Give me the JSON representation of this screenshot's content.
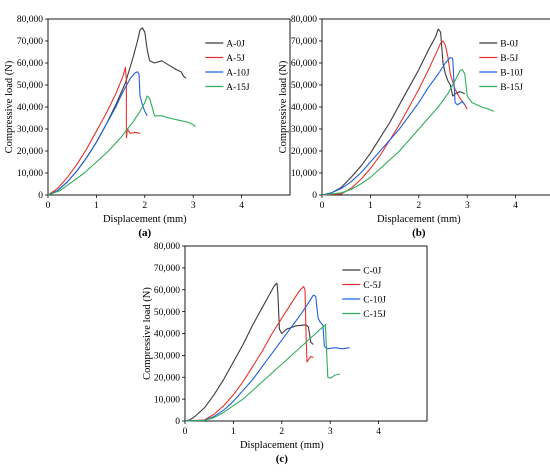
{
  "chart_data": [
    {
      "type": "line",
      "panel_label": "(a)",
      "xlabel": "Displacement (mm)",
      "ylabel": "Compressive load (N)",
      "xlim": [
        0,
        5
      ],
      "ylim": [
        0,
        80000
      ],
      "x_ticks": [
        "0",
        "1",
        "2",
        "3",
        "4"
      ],
      "y_ticks": [
        "0",
        "10,000",
        "20,000",
        "30,000",
        "40,000",
        "50,000",
        "60,000",
        "70,000",
        "80,000"
      ],
      "grid": false,
      "legend": "top-right",
      "series": [
        {
          "name": "A-0J",
          "color": "#3c3c3c",
          "points": [
            [
              0.0,
              0
            ],
            [
              0.2,
              2000
            ],
            [
              0.4,
              6000
            ],
            [
              0.6,
              11000
            ],
            [
              0.8,
              17000
            ],
            [
              1.0,
              24000
            ],
            [
              1.2,
              32000
            ],
            [
              1.4,
              41000
            ],
            [
              1.6,
              51000
            ],
            [
              1.75,
              62000
            ],
            [
              1.85,
              70000
            ],
            [
              1.9,
              75000
            ],
            [
              1.95,
              76000
            ],
            [
              2.0,
              74000
            ],
            [
              2.05,
              66000
            ],
            [
              2.1,
              61000
            ],
            [
              2.2,
              60000
            ],
            [
              2.35,
              61000
            ],
            [
              2.5,
              59000
            ],
            [
              2.65,
              57000
            ],
            [
              2.75,
              56000
            ],
            [
              2.8,
              54000
            ],
            [
              2.85,
              53000
            ]
          ]
        },
        {
          "name": "A-5J",
          "color": "#e8322e",
          "points": [
            [
              0.0,
              0
            ],
            [
              0.2,
              3000
            ],
            [
              0.4,
              8000
            ],
            [
              0.6,
              14000
            ],
            [
              0.8,
              21000
            ],
            [
              1.0,
              29000
            ],
            [
              1.2,
              37000
            ],
            [
              1.4,
              46000
            ],
            [
              1.55,
              54000
            ],
            [
              1.6,
              58000
            ],
            [
              1.62,
              52000
            ],
            [
              1.62,
              26000
            ],
            [
              1.64,
              30000
            ],
            [
              1.7,
              28000
            ],
            [
              1.8,
              28500
            ],
            [
              1.9,
              28000
            ]
          ]
        },
        {
          "name": "A-10J",
          "color": "#2060e0",
          "points": [
            [
              0.0,
              0
            ],
            [
              0.2,
              2000
            ],
            [
              0.4,
              6000
            ],
            [
              0.6,
              11000
            ],
            [
              0.8,
              17000
            ],
            [
              1.0,
              24000
            ],
            [
              1.2,
              32000
            ],
            [
              1.4,
              40000
            ],
            [
              1.55,
              47000
            ],
            [
              1.7,
              53000
            ],
            [
              1.8,
              55500
            ],
            [
              1.85,
              56000
            ],
            [
              1.88,
              55000
            ],
            [
              1.9,
              45000
            ],
            [
              1.95,
              41000
            ],
            [
              2.0,
              38000
            ],
            [
              2.05,
              36000
            ]
          ]
        },
        {
          "name": "A-15J",
          "color": "#2fae5a",
          "points": [
            [
              0.0,
              0
            ],
            [
              0.25,
              2000
            ],
            [
              0.5,
              6000
            ],
            [
              0.75,
              10000
            ],
            [
              1.0,
              15000
            ],
            [
              1.25,
              20000
            ],
            [
              1.5,
              26000
            ],
            [
              1.75,
              33000
            ],
            [
              1.9,
              38000
            ],
            [
              2.0,
              42000
            ],
            [
              2.05,
              45000
            ],
            [
              2.1,
              44000
            ],
            [
              2.15,
              40000
            ],
            [
              2.2,
              36000
            ],
            [
              2.35,
              36000
            ],
            [
              2.5,
              35000
            ],
            [
              2.7,
              34000
            ],
            [
              2.9,
              33000
            ],
            [
              3.0,
              32000
            ],
            [
              3.05,
              31000
            ]
          ]
        }
      ]
    },
    {
      "type": "line",
      "panel_label": "(b)",
      "xlabel": "Displacement (mm)",
      "ylabel": "Compressive load (N)",
      "xlim": [
        0,
        5
      ],
      "ylim": [
        0,
        80000
      ],
      "x_ticks": [
        "0",
        "1",
        "2",
        "3",
        "4"
      ],
      "y_ticks": [
        "0",
        "10,000",
        "20,000",
        "30,000",
        "40,000",
        "50,000",
        "60,000",
        "70,000",
        "80,000"
      ],
      "grid": false,
      "legend": "top-right",
      "series": [
        {
          "name": "B-0J",
          "color": "#3c3c3c",
          "points": [
            [
              0.0,
              0
            ],
            [
              0.2,
              1000
            ],
            [
              0.4,
              3500
            ],
            [
              0.6,
              8000
            ],
            [
              0.8,
              13000
            ],
            [
              1.0,
              19000
            ],
            [
              1.2,
              26000
            ],
            [
              1.4,
              33000
            ],
            [
              1.6,
              41000
            ],
            [
              1.8,
              49000
            ],
            [
              2.0,
              57000
            ],
            [
              2.2,
              66000
            ],
            [
              2.35,
              72000
            ],
            [
              2.4,
              75500
            ],
            [
              2.45,
              74000
            ],
            [
              2.5,
              60000
            ],
            [
              2.55,
              55000
            ],
            [
              2.6,
              52000
            ],
            [
              2.65,
              50000
            ],
            [
              2.7,
              45000
            ],
            [
              2.75,
              46000
            ],
            [
              2.85,
              47000
            ],
            [
              2.95,
              46000
            ]
          ]
        },
        {
          "name": "B-5J",
          "color": "#e8322e",
          "points": [
            [
              0.0,
              0
            ],
            [
              0.4,
              500
            ],
            [
              0.6,
              3000
            ],
            [
              0.8,
              7000
            ],
            [
              1.0,
              12000
            ],
            [
              1.2,
              18000
            ],
            [
              1.4,
              25000
            ],
            [
              1.6,
              32000
            ],
            [
              1.8,
              40000
            ],
            [
              2.0,
              48000
            ],
            [
              2.2,
              57000
            ],
            [
              2.35,
              64000
            ],
            [
              2.45,
              69000
            ],
            [
              2.5,
              70000
            ],
            [
              2.55,
              68000
            ],
            [
              2.6,
              63000
            ],
            [
              2.65,
              55000
            ],
            [
              2.75,
              48000
            ],
            [
              2.85,
              44000
            ],
            [
              2.95,
              41000
            ],
            [
              3.0,
              39000
            ]
          ]
        },
        {
          "name": "B-10J",
          "color": "#2060e0",
          "points": [
            [
              0.0,
              0
            ],
            [
              0.2,
              1000
            ],
            [
              0.4,
              3000
            ],
            [
              0.6,
              6000
            ],
            [
              0.8,
              10000
            ],
            [
              1.0,
              15000
            ],
            [
              1.2,
              20000
            ],
            [
              1.4,
              25000
            ],
            [
              1.6,
              30000
            ],
            [
              1.8,
              36000
            ],
            [
              2.0,
              42000
            ],
            [
              2.2,
              49000
            ],
            [
              2.4,
              55000
            ],
            [
              2.55,
              60000
            ],
            [
              2.65,
              62500
            ],
            [
              2.7,
              62000
            ],
            [
              2.73,
              50000
            ],
            [
              2.75,
              42000
            ],
            [
              2.8,
              41000
            ],
            [
              2.9,
              42500
            ],
            [
              2.95,
              41000
            ]
          ]
        },
        {
          "name": "B-15J",
          "color": "#2fae5a",
          "points": [
            [
              0.0,
              0
            ],
            [
              0.4,
              1000
            ],
            [
              0.6,
              2500
            ],
            [
              0.8,
              5000
            ],
            [
              1.0,
              8000
            ],
            [
              1.2,
              12000
            ],
            [
              1.4,
              16000
            ],
            [
              1.6,
              20000
            ],
            [
              1.8,
              25000
            ],
            [
              2.0,
              30000
            ],
            [
              2.2,
              35000
            ],
            [
              2.4,
              40000
            ],
            [
              2.6,
              46000
            ],
            [
              2.75,
              52000
            ],
            [
              2.85,
              56500
            ],
            [
              2.9,
              57000
            ],
            [
              2.95,
              55000
            ],
            [
              3.0,
              45000
            ],
            [
              3.1,
              42000
            ],
            [
              3.3,
              40000
            ],
            [
              3.45,
              39000
            ],
            [
              3.55,
              38000
            ]
          ]
        }
      ]
    },
    {
      "type": "line",
      "panel_label": "(c)",
      "xlabel": "Displacement (mm)",
      "ylabel": "Compressive load (N)",
      "xlim": [
        0,
        5
      ],
      "ylim": [
        0,
        80000
      ],
      "x_ticks": [
        "0",
        "1",
        "2",
        "3",
        "4"
      ],
      "y_ticks": [
        "0",
        "10,000",
        "20,000",
        "30,000",
        "40,000",
        "50,000",
        "60,000",
        "70,000",
        "80,000"
      ],
      "grid": false,
      "legend": "top-right",
      "series": [
        {
          "name": "C-0J",
          "color": "#3c3c3c",
          "points": [
            [
              0.0,
              0
            ],
            [
              0.1,
              500
            ],
            [
              0.2,
              2000
            ],
            [
              0.4,
              6000
            ],
            [
              0.6,
              12000
            ],
            [
              0.8,
              19000
            ],
            [
              1.0,
              27000
            ],
            [
              1.2,
              35000
            ],
            [
              1.4,
              44000
            ],
            [
              1.6,
              52000
            ],
            [
              1.75,
              58000
            ],
            [
              1.85,
              62000
            ],
            [
              1.9,
              63000
            ],
            [
              1.92,
              58000
            ],
            [
              1.95,
              42000
            ],
            [
              2.0,
              40000
            ],
            [
              2.1,
              42000
            ],
            [
              2.3,
              43500
            ],
            [
              2.5,
              44000
            ],
            [
              2.55,
              43000
            ],
            [
              2.6,
              36000
            ],
            [
              2.65,
              35000
            ]
          ]
        },
        {
          "name": "C-5J",
          "color": "#e8322e",
          "points": [
            [
              0.0,
              0
            ],
            [
              0.4,
              500
            ],
            [
              0.6,
              3000
            ],
            [
              0.8,
              7000
            ],
            [
              1.0,
              12000
            ],
            [
              1.2,
              18000
            ],
            [
              1.4,
              25000
            ],
            [
              1.6,
              32000
            ],
            [
              1.8,
              40000
            ],
            [
              2.0,
              47000
            ],
            [
              2.2,
              54000
            ],
            [
              2.35,
              59000
            ],
            [
              2.45,
              61500
            ],
            [
              2.48,
              60000
            ],
            [
              2.5,
              40000
            ],
            [
              2.52,
              27000
            ],
            [
              2.55,
              28000
            ],
            [
              2.6,
              29500
            ],
            [
              2.65,
              29000
            ]
          ]
        },
        {
          "name": "C-10J",
          "color": "#2060e0",
          "points": [
            [
              0.0,
              0
            ],
            [
              0.4,
              300
            ],
            [
              0.6,
              2000
            ],
            [
              0.8,
              5000
            ],
            [
              1.0,
              9000
            ],
            [
              1.2,
              14000
            ],
            [
              1.4,
              19000
            ],
            [
              1.6,
              25000
            ],
            [
              1.8,
              31000
            ],
            [
              2.0,
              37000
            ],
            [
              2.2,
              43000
            ],
            [
              2.4,
              49000
            ],
            [
              2.55,
              54000
            ],
            [
              2.65,
              57500
            ],
            [
              2.7,
              57000
            ],
            [
              2.75,
              47000
            ],
            [
              2.8,
              45000
            ],
            [
              2.85,
              44000
            ],
            [
              2.88,
              34000
            ],
            [
              2.95,
              33000
            ],
            [
              3.1,
              33500
            ],
            [
              3.25,
              33000
            ],
            [
              3.4,
              33500
            ]
          ]
        },
        {
          "name": "C-15J",
          "color": "#2fae5a",
          "points": [
            [
              0.0,
              0
            ],
            [
              0.4,
              300
            ],
            [
              0.6,
              1500
            ],
            [
              0.8,
              4000
            ],
            [
              1.0,
              7000
            ],
            [
              1.2,
              10000
            ],
            [
              1.4,
              14000
            ],
            [
              1.6,
              18000
            ],
            [
              1.8,
              22000
            ],
            [
              2.0,
              26000
            ],
            [
              2.2,
              30000
            ],
            [
              2.4,
              34000
            ],
            [
              2.6,
              38000
            ],
            [
              2.8,
              42000
            ],
            [
              2.9,
              44000
            ],
            [
              2.93,
              30000
            ],
            [
              2.95,
              20000
            ],
            [
              3.0,
              19500
            ],
            [
              3.1,
              21000
            ],
            [
              3.2,
              21500
            ]
          ]
        }
      ]
    }
  ]
}
